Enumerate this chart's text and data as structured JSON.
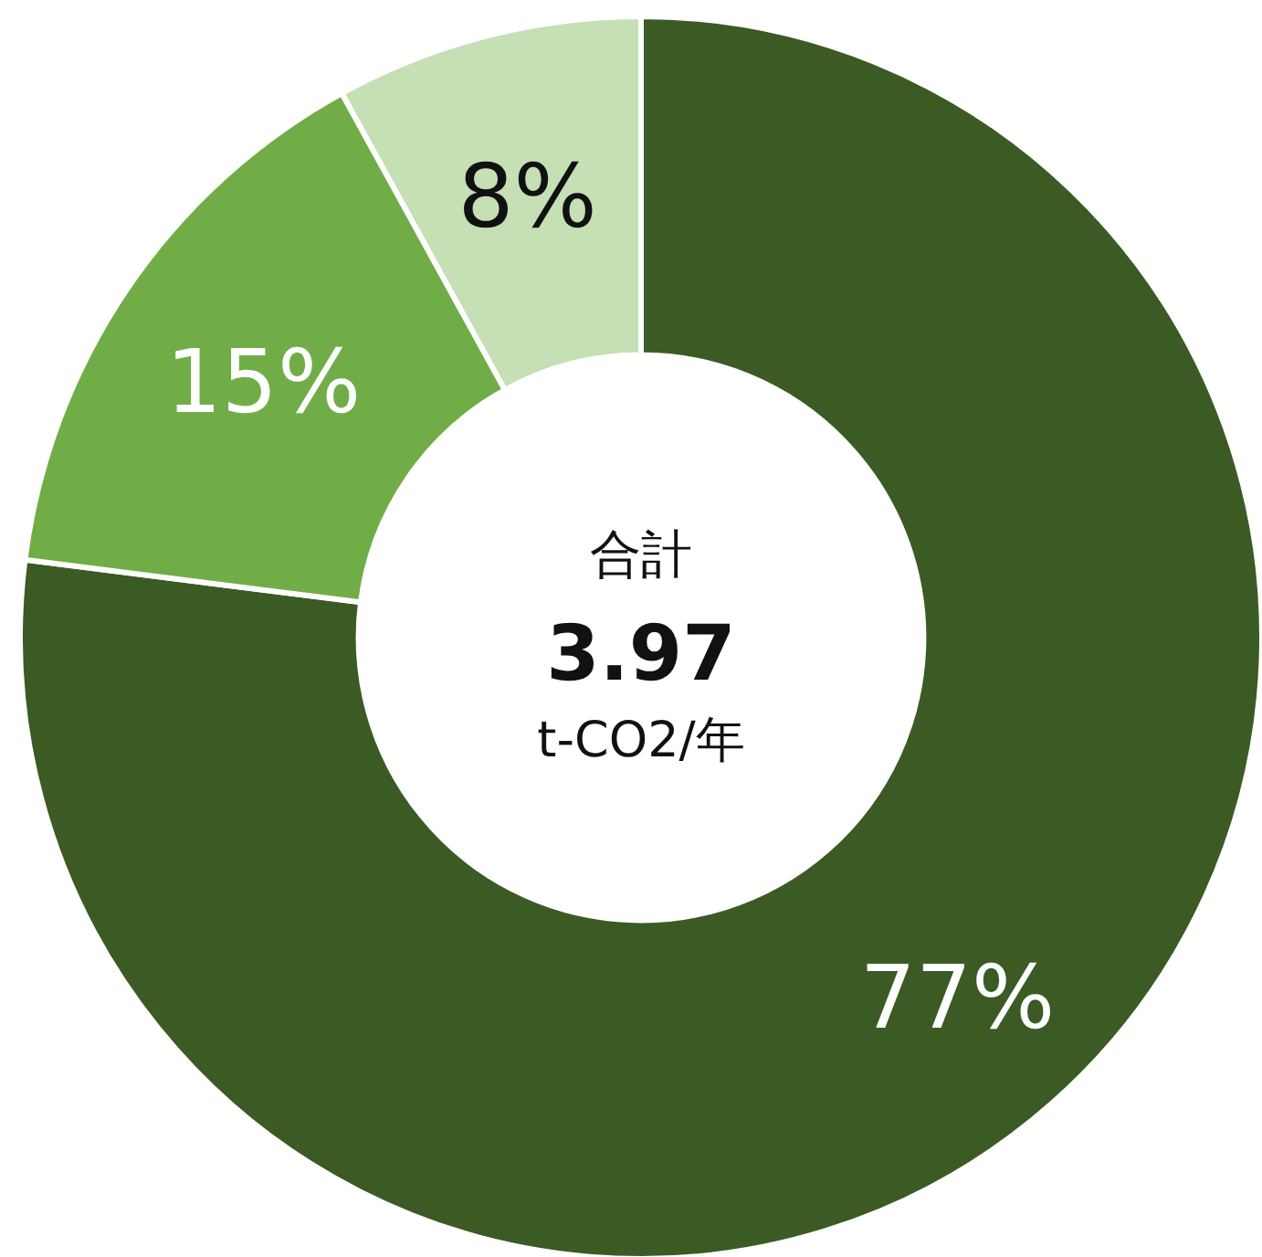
{
  "chart_data": {
    "type": "donut",
    "categories": [
      null,
      null,
      null
    ],
    "values": [
      77,
      15,
      8
    ],
    "colors": [
      "#3b5a24",
      "#70ad47",
      "#c5e0b4"
    ],
    "value_labels": [
      "77%",
      "15%",
      "8%"
    ],
    "title": "合計",
    "subtitle": "3.97",
    "annotations": [
      "t-CO2/年"
    ]
  }
}
